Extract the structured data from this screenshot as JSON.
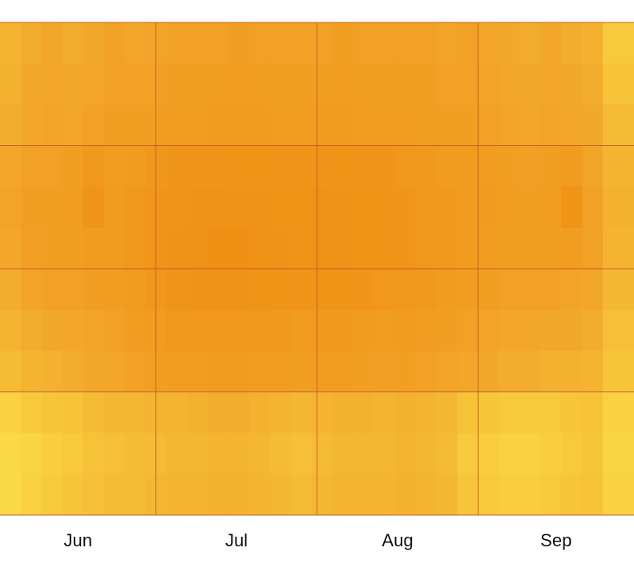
{
  "chart_data": {
    "type": "heatmap",
    "xlim": [
      0,
      122
    ],
    "ylim": [
      0,
      24
    ],
    "xticks": [
      {
        "value": 15,
        "label": "Jun"
      },
      {
        "value": 45.5,
        "label": "Jul"
      },
      {
        "value": 76.5,
        "label": "Aug"
      },
      {
        "value": 107,
        "label": "Sep"
      }
    ],
    "x_grid": [
      30,
      61,
      92
    ],
    "y_grid": [
      6,
      12,
      18
    ],
    "x_bins": [
      0,
      4,
      8,
      12,
      16,
      20,
      24,
      28,
      32,
      36,
      40,
      44,
      48,
      52,
      56,
      60,
      64,
      68,
      72,
      76,
      80,
      84,
      88,
      92,
      96,
      100,
      104,
      108,
      112,
      116,
      122
    ],
    "y_bins": [
      0,
      2,
      4,
      6,
      8,
      10,
      12,
      14,
      16,
      18,
      20,
      22,
      24
    ],
    "zlim": [
      0,
      100
    ],
    "colormap": [
      "#ffef5a",
      "#f7c93c",
      "#f2a62a",
      "#ef8f14",
      "#e66a0a"
    ],
    "grid_color": "#c8621e",
    "z": [
      [
        40,
        45,
        50,
        45,
        48,
        55,
        50,
        52,
        55,
        55,
        55,
        58,
        55,
        55,
        55,
        55,
        58,
        55,
        55,
        55,
        55,
        52,
        55,
        50,
        48,
        45,
        50,
        45,
        42,
        25
      ],
      [
        42,
        48,
        50,
        48,
        50,
        55,
        55,
        55,
        58,
        58,
        58,
        60,
        58,
        58,
        58,
        58,
        60,
        58,
        58,
        58,
        58,
        55,
        55,
        52,
        50,
        48,
        50,
        48,
        45,
        30
      ],
      [
        45,
        50,
        52,
        50,
        55,
        58,
        58,
        58,
        60,
        60,
        62,
        62,
        62,
        60,
        60,
        62,
        62,
        60,
        60,
        60,
        58,
        58,
        58,
        55,
        52,
        50,
        52,
        50,
        48,
        35
      ],
      [
        50,
        55,
        55,
        58,
        65,
        60,
        62,
        65,
        68,
        68,
        68,
        70,
        70,
        68,
        68,
        68,
        70,
        68,
        68,
        66,
        64,
        62,
        62,
        60,
        58,
        56,
        58,
        62,
        52,
        40
      ],
      [
        52,
        58,
        58,
        60,
        70,
        62,
        65,
        68,
        70,
        72,
        72,
        72,
        72,
        70,
        70,
        72,
        72,
        70,
        70,
        68,
        66,
        64,
        62,
        62,
        60,
        58,
        60,
        70,
        55,
        42
      ],
      [
        50,
        56,
        58,
        58,
        62,
        62,
        65,
        68,
        72,
        72,
        74,
        74,
        72,
        72,
        70,
        72,
        72,
        70,
        70,
        68,
        66,
        64,
        62,
        60,
        58,
        58,
        58,
        60,
        55,
        40
      ],
      [
        45,
        52,
        55,
        55,
        58,
        60,
        62,
        66,
        70,
        72,
        72,
        72,
        70,
        70,
        68,
        70,
        70,
        68,
        66,
        66,
        64,
        62,
        60,
        58,
        55,
        55,
        55,
        52,
        50,
        38
      ],
      [
        40,
        45,
        48,
        50,
        52,
        55,
        60,
        62,
        65,
        66,
        66,
        66,
        65,
        64,
        62,
        64,
        64,
        62,
        60,
        62,
        60,
        58,
        55,
        52,
        50,
        50,
        48,
        48,
        45,
        32
      ],
      [
        35,
        40,
        42,
        45,
        48,
        50,
        55,
        58,
        60,
        60,
        62,
        62,
        60,
        60,
        58,
        60,
        60,
        58,
        56,
        58,
        55,
        52,
        50,
        48,
        45,
        45,
        42,
        42,
        40,
        28
      ],
      [
        20,
        25,
        28,
        30,
        35,
        38,
        38,
        40,
        40,
        42,
        45,
        45,
        42,
        40,
        38,
        40,
        42,
        42,
        40,
        42,
        40,
        38,
        30,
        28,
        25,
        25,
        25,
        28,
        30,
        20
      ],
      [
        15,
        18,
        22,
        25,
        30,
        32,
        35,
        35,
        38,
        38,
        40,
        40,
        38,
        35,
        32,
        35,
        38,
        38,
        38,
        40,
        38,
        35,
        25,
        22,
        20,
        20,
        22,
        25,
        28,
        18
      ],
      [
        15,
        20,
        25,
        28,
        32,
        35,
        35,
        38,
        40,
        40,
        42,
        42,
        40,
        38,
        35,
        38,
        40,
        40,
        40,
        42,
        40,
        38,
        28,
        25,
        22,
        22,
        25,
        28,
        30,
        20
      ]
    ]
  }
}
